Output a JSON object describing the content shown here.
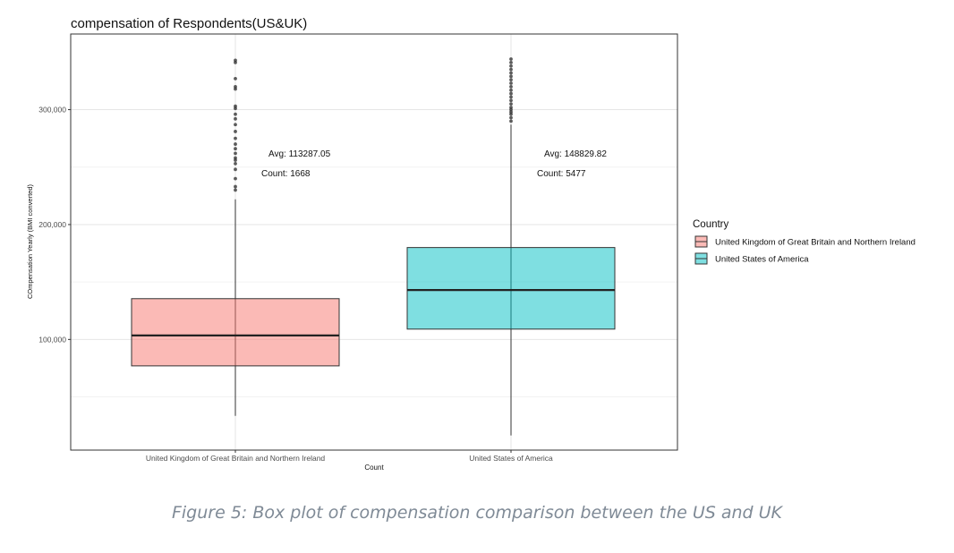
{
  "chart_data": {
    "type": "box",
    "title": "compensation of Respondents(US&UK)",
    "xlabel": "Count",
    "ylabel": "COmpensation Yearly (BMI converted)",
    "ylim": [
      0,
      355000
    ],
    "y_ticks": [
      100000,
      200000,
      300000
    ],
    "y_tick_labels": [
      "100,000",
      "200,000",
      "300,000"
    ],
    "grid": true,
    "legend": {
      "title": "Country",
      "placement": "right",
      "entries": [
        "United Kingdom of Great Britain and Northern Ireland",
        "United States of America"
      ]
    },
    "series": [
      {
        "name": "United Kingdom of Great Britain and Northern Ireland",
        "color": "#f8766d",
        "whisker_low": 33500,
        "q1": 77000,
        "median": 103500,
        "q3": 135500,
        "whisker_high": 222000,
        "outliers": [
          230000,
          233000,
          240000,
          248000,
          253000,
          256000,
          258000,
          262000,
          266000,
          270000,
          275000,
          281000,
          287000,
          292000,
          296000,
          301000,
          303000,
          318000,
          320000,
          327000,
          341000,
          343000
        ],
        "avg_label": "Avg: 113287.05",
        "count_label": "Count: 1668"
      },
      {
        "name": "United States of America",
        "color": "#00bfc4",
        "whisker_low": 16500,
        "q1": 109000,
        "median": 143000,
        "q3": 180000,
        "whisker_high": 287000,
        "outliers": [
          290000,
          293000,
          296000,
          298000,
          300000,
          302000,
          305000,
          308000,
          311000,
          314000,
          317000,
          320000,
          323000,
          326000,
          329000,
          332000,
          335000,
          338000,
          341000,
          344000
        ],
        "avg_label": "Avg: 148829.82",
        "count_label": "Count: 5477"
      }
    ]
  },
  "caption": "Figure 5: Box plot of compensation comparison between the US and UK"
}
